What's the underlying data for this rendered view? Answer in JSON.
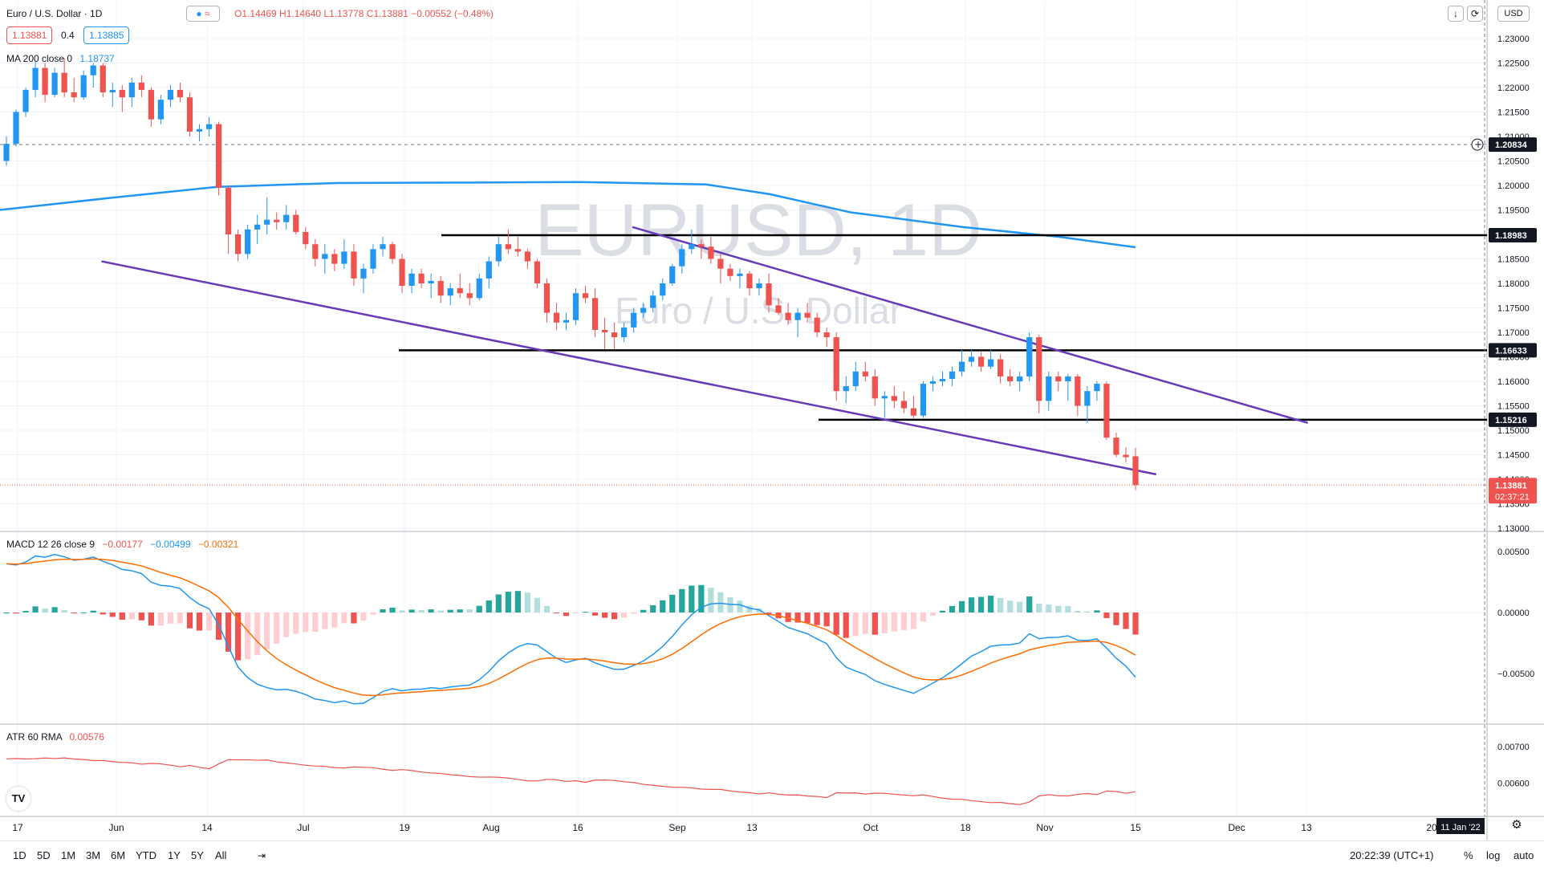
{
  "header": {
    "symbol": "Euro / U.S. Dollar · 1D",
    "ohlc": "O1.14469  H1.14640  L1.13778  C1.13881  −0.00552 (−0.48%)",
    "bid": "1.13881",
    "spread": "0.4",
    "ask": "1.13885",
    "currency": "USD",
    "buttons": [
      "down-arrow-icon",
      "camera-icon"
    ]
  },
  "watermark": {
    "line1": "EURUSD, 1D",
    "line2": "Euro / U.S. Dollar"
  },
  "indicators": {
    "ma": {
      "label": "MA 200 close 0",
      "value": "1.18737"
    },
    "macd": {
      "label": "MACD 12 26 close 9",
      "v1": "−0.00177",
      "v2": "−0.00499",
      "v3": "−0.00321"
    },
    "atr": {
      "label": "ATR 60 RMA",
      "value": "0.00576"
    }
  },
  "colors": {
    "up": "#2196f3",
    "down": "#ef5350",
    "ma": "#2196f3",
    "channel": "#673ab7",
    "macd": "#2196f3",
    "signal": "#ff6d00",
    "hist_up_strong": "#26a69a",
    "hist_up_weak": "#b2dfdb",
    "hist_down_strong": "#ef5350",
    "hist_down_weak": "#ffcdd2",
    "atr": "#ef5350"
  },
  "price_axis": {
    "ticks": [
      "1.23000",
      "1.22500",
      "1.22000",
      "1.21500",
      "1.21000",
      "1.20500",
      "1.20000",
      "1.19500",
      "1.19000",
      "1.18500",
      "1.18000",
      "1.17500",
      "1.17000",
      "1.16500",
      "1.16000",
      "1.15500",
      "1.15000",
      "1.14500",
      "1.14000",
      "1.13500",
      "1.13000"
    ],
    "tags": [
      {
        "value": "1.20834",
        "style": "dark"
      },
      {
        "value": "1.18983",
        "style": "black"
      },
      {
        "value": "1.16633",
        "style": "black"
      },
      {
        "value": "1.15216",
        "style": "black"
      },
      {
        "value": "1.13881",
        "style": "red",
        "countdown": "02:37:21"
      }
    ]
  },
  "macd_axis": {
    "ticks": [
      "0.00500",
      "0.00000",
      "−0.00500"
    ]
  },
  "atr_axis": {
    "ticks": [
      "0.00700",
      "0.00600"
    ]
  },
  "time_axis": {
    "labels": [
      "17",
      "Jun",
      "14",
      "Jul",
      "19",
      "Aug",
      "16",
      "Sep",
      "13",
      "Oct",
      "18",
      "Nov",
      "15",
      "Dec",
      "13",
      "20"
    ],
    "cursor_label": "11 Jan '22"
  },
  "bottom_bar": {
    "ranges": [
      "1D",
      "5D",
      "1M",
      "3M",
      "6M",
      "YTD",
      "1Y",
      "5Y",
      "All"
    ],
    "clock": "20:22:39 (UTC+1)",
    "percent": "%",
    "log": "log",
    "auto": "auto"
  },
  "chart_data": {
    "type": "candlestick",
    "symbol": "EURUSD",
    "interval": "1D",
    "ylim": [
      1.127,
      1.233
    ],
    "candles_note": "EUR/USD daily, May 2021 – 15 Nov 2021",
    "candles": [
      [
        1.205,
        1.21,
        1.204,
        1.2085
      ],
      [
        1.2085,
        1.2155,
        1.208,
        1.215
      ],
      [
        1.215,
        1.22,
        1.214,
        1.2195
      ],
      [
        1.2195,
        1.2255,
        1.218,
        1.224
      ],
      [
        1.224,
        1.225,
        1.217,
        1.2185
      ],
      [
        1.2185,
        1.224,
        1.218,
        1.223
      ],
      [
        1.223,
        1.226,
        1.218,
        1.219
      ],
      [
        1.219,
        1.222,
        1.217,
        1.218
      ],
      [
        1.218,
        1.2235,
        1.2175,
        1.2225
      ],
      [
        1.2225,
        1.225,
        1.22,
        1.2245
      ],
      [
        1.2245,
        1.225,
        1.218,
        1.219
      ],
      [
        1.219,
        1.221,
        1.216,
        1.2195
      ],
      [
        1.2195,
        1.2205,
        1.215,
        1.218
      ],
      [
        1.218,
        1.222,
        1.216,
        1.221
      ],
      [
        1.221,
        1.2225,
        1.218,
        1.2195
      ],
      [
        1.2195,
        1.22,
        1.212,
        1.2135
      ],
      [
        1.2135,
        1.2185,
        1.2125,
        1.2175
      ],
      [
        1.2175,
        1.2205,
        1.216,
        1.2195
      ],
      [
        1.2195,
        1.221,
        1.217,
        1.218
      ],
      [
        1.218,
        1.219,
        1.21,
        1.211
      ],
      [
        1.211,
        1.2125,
        1.209,
        1.2115
      ],
      [
        1.2115,
        1.214,
        1.21,
        1.2125
      ],
      [
        1.2125,
        1.213,
        1.198,
        1.1995
      ],
      [
        1.1995,
        1.2,
        1.186,
        1.19
      ],
      [
        1.19,
        1.191,
        1.1845,
        1.186
      ],
      [
        1.186,
        1.192,
        1.185,
        1.191
      ],
      [
        1.191,
        1.194,
        1.188,
        1.192
      ],
      [
        1.192,
        1.1975,
        1.19,
        1.193
      ],
      [
        1.193,
        1.1945,
        1.191,
        1.1925
      ],
      [
        1.1925,
        1.196,
        1.191,
        1.194
      ],
      [
        1.194,
        1.195,
        1.19,
        1.1905
      ],
      [
        1.1905,
        1.1915,
        1.187,
        1.188
      ],
      [
        1.188,
        1.189,
        1.1835,
        1.185
      ],
      [
        1.185,
        1.188,
        1.182,
        1.186
      ],
      [
        1.186,
        1.187,
        1.1825,
        1.184
      ],
      [
        1.184,
        1.189,
        1.183,
        1.1865
      ],
      [
        1.1865,
        1.188,
        1.1795,
        1.181
      ],
      [
        1.181,
        1.184,
        1.178,
        1.183
      ],
      [
        1.183,
        1.188,
        1.182,
        1.187
      ],
      [
        1.187,
        1.1895,
        1.1855,
        1.188
      ],
      [
        1.188,
        1.1885,
        1.184,
        1.185
      ],
      [
        1.185,
        1.186,
        1.178,
        1.1795
      ],
      [
        1.1795,
        1.183,
        1.178,
        1.182
      ],
      [
        1.182,
        1.183,
        1.179,
        1.18
      ],
      [
        1.18,
        1.182,
        1.177,
        1.1805
      ],
      [
        1.1805,
        1.1815,
        1.176,
        1.1775
      ],
      [
        1.1775,
        1.18,
        1.1755,
        1.179
      ],
      [
        1.179,
        1.182,
        1.177,
        1.178
      ],
      [
        1.178,
        1.18,
        1.1755,
        1.177
      ],
      [
        1.177,
        1.182,
        1.1765,
        1.181
      ],
      [
        1.181,
        1.1855,
        1.179,
        1.1845
      ],
      [
        1.1845,
        1.1895,
        1.1835,
        1.188
      ],
      [
        1.188,
        1.191,
        1.186,
        1.187
      ],
      [
        1.187,
        1.1895,
        1.1855,
        1.1865
      ],
      [
        1.1865,
        1.187,
        1.183,
        1.1845
      ],
      [
        1.1845,
        1.185,
        1.179,
        1.18
      ],
      [
        1.18,
        1.181,
        1.172,
        1.174
      ],
      [
        1.174,
        1.176,
        1.1705,
        1.172
      ],
      [
        1.172,
        1.174,
        1.1705,
        1.1725
      ],
      [
        1.1725,
        1.179,
        1.1715,
        1.178
      ],
      [
        1.178,
        1.1795,
        1.176,
        1.177
      ],
      [
        1.177,
        1.179,
        1.169,
        1.1705
      ],
      [
        1.1705,
        1.173,
        1.1665,
        1.17
      ],
      [
        1.17,
        1.172,
        1.1665,
        1.169
      ],
      [
        1.169,
        1.172,
        1.168,
        1.171
      ],
      [
        1.171,
        1.175,
        1.17,
        1.174
      ],
      [
        1.174,
        1.176,
        1.173,
        1.175
      ],
      [
        1.175,
        1.1785,
        1.174,
        1.1775
      ],
      [
        1.1775,
        1.181,
        1.1765,
        1.18
      ],
      [
        1.18,
        1.184,
        1.1795,
        1.1835
      ],
      [
        1.1835,
        1.188,
        1.182,
        1.187
      ],
      [
        1.187,
        1.191,
        1.186,
        1.188
      ],
      [
        1.188,
        1.189,
        1.185,
        1.1875
      ],
      [
        1.1875,
        1.1895,
        1.184,
        1.185
      ],
      [
        1.185,
        1.186,
        1.18,
        1.183
      ],
      [
        1.183,
        1.184,
        1.1805,
        1.1815
      ],
      [
        1.1815,
        1.183,
        1.179,
        1.182
      ],
      [
        1.182,
        1.1825,
        1.1775,
        1.179
      ],
      [
        1.179,
        1.181,
        1.1775,
        1.18
      ],
      [
        1.18,
        1.182,
        1.174,
        1.1755
      ],
      [
        1.1755,
        1.177,
        1.1735,
        1.174
      ],
      [
        1.174,
        1.176,
        1.1715,
        1.1725
      ],
      [
        1.1725,
        1.175,
        1.169,
        1.174
      ],
      [
        1.174,
        1.176,
        1.172,
        1.173
      ],
      [
        1.173,
        1.174,
        1.169,
        1.17
      ],
      [
        1.17,
        1.171,
        1.167,
        1.169
      ],
      [
        1.169,
        1.17,
        1.156,
        1.158
      ],
      [
        1.158,
        1.161,
        1.1555,
        1.159
      ],
      [
        1.159,
        1.164,
        1.158,
        1.162
      ],
      [
        1.162,
        1.164,
        1.16,
        1.161
      ],
      [
        1.161,
        1.1625,
        1.155,
        1.1565
      ],
      [
        1.1565,
        1.158,
        1.1525,
        1.157
      ],
      [
        1.157,
        1.159,
        1.1545,
        1.156
      ],
      [
        1.156,
        1.158,
        1.1535,
        1.1545
      ],
      [
        1.1545,
        1.157,
        1.1525,
        1.153
      ],
      [
        1.153,
        1.16,
        1.1525,
        1.1595
      ],
      [
        1.1595,
        1.161,
        1.158,
        1.16
      ],
      [
        1.16,
        1.162,
        1.159,
        1.1605
      ],
      [
        1.1605,
        1.163,
        1.159,
        1.162
      ],
      [
        1.162,
        1.1665,
        1.161,
        1.164
      ],
      [
        1.164,
        1.1665,
        1.163,
        1.165
      ],
      [
        1.165,
        1.166,
        1.162,
        1.163
      ],
      [
        1.163,
        1.1665,
        1.1625,
        1.1645
      ],
      [
        1.1645,
        1.1655,
        1.1595,
        1.161
      ],
      [
        1.161,
        1.1625,
        1.159,
        1.16
      ],
      [
        1.16,
        1.162,
        1.158,
        1.161
      ],
      [
        1.161,
        1.17,
        1.16,
        1.169
      ],
      [
        1.169,
        1.1695,
        1.1535,
        1.156
      ],
      [
        1.156,
        1.162,
        1.154,
        1.161
      ],
      [
        1.161,
        1.162,
        1.158,
        1.16
      ],
      [
        1.16,
        1.1615,
        1.156,
        1.161
      ],
      [
        1.161,
        1.1615,
        1.153,
        1.155
      ],
      [
        1.155,
        1.159,
        1.1515,
        1.158
      ],
      [
        1.158,
        1.16,
        1.156,
        1.1595
      ],
      [
        1.1595,
        1.16,
        1.148,
        1.1485
      ],
      [
        1.1485,
        1.1495,
        1.1445,
        1.145
      ],
      [
        1.145,
        1.1465,
        1.1435,
        1.1445
      ],
      [
        1.14469,
        1.1464,
        1.13778,
        1.13881
      ]
    ],
    "ma200": {
      "label": "MA 200",
      "value": 1.18737
    },
    "horizontal_levels": [
      1.18983,
      1.16633,
      1.15216
    ],
    "dashed_level": 1.20834,
    "last_price": 1.13881,
    "channel_lines": [
      {
        "from": [
          "2021-06-18",
          1.1845
        ],
        "to": [
          "2021-11-18",
          1.141
        ]
      },
      {
        "from": [
          "2021-09-03",
          1.1915
        ],
        "to": [
          "2021-12-10",
          1.1515
        ]
      }
    ],
    "macd": {
      "macd": -0.00499,
      "signal": -0.00321,
      "hist": -0.00177,
      "ylim": [
        -0.0085,
        0.006
      ]
    },
    "atr": {
      "value": 0.00576,
      "ylim": [
        0.0053,
        0.0074
      ]
    }
  }
}
